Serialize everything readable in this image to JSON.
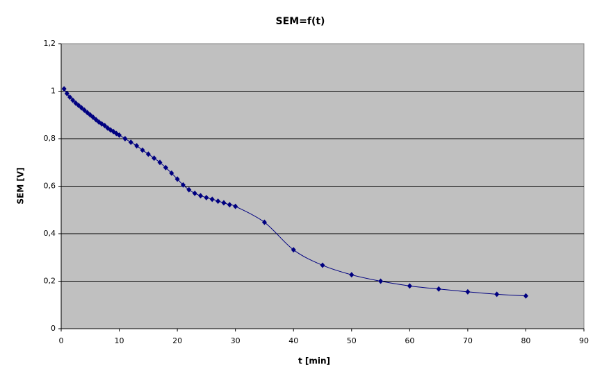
{
  "chart_data": {
    "type": "scatter",
    "title": "SEM=f(t)",
    "x_label": "t [min]",
    "y_label": "SEM [V]",
    "xlim": [
      0,
      90
    ],
    "xticks": [
      0,
      10,
      20,
      30,
      40,
      50,
      60,
      70,
      80,
      90
    ],
    "ylim": [
      0,
      1.2
    ],
    "yticks": [
      0,
      {
        "value": 0.2,
        "label": "0,2"
      },
      {
        "value": 0.4,
        "label": "0,4"
      },
      {
        "value": 0.6,
        "label": "0,6"
      },
      {
        "value": 0.8,
        "label": "0,8"
      },
      1,
      {
        "value": 1.2,
        "label": "1,2"
      }
    ],
    "grid": true,
    "smooth": true,
    "series": [
      {
        "color": "#000080",
        "x": [
          0.5,
          1,
          1.5,
          2,
          2.5,
          3,
          3.5,
          4,
          4.5,
          5,
          5.5,
          6,
          6.5,
          7,
          7.5,
          8,
          8.5,
          9,
          9.5,
          10,
          11,
          12,
          13,
          14,
          15,
          16,
          17,
          18,
          19,
          20,
          21,
          22,
          23,
          24,
          25,
          26,
          27,
          28,
          29,
          30,
          35,
          40,
          45,
          50,
          55,
          60,
          65,
          70,
          75,
          80
        ],
        "values": [
          1.01,
          0.99,
          0.975,
          0.962,
          0.95,
          0.94,
          0.93,
          0.92,
          0.91,
          0.9,
          0.89,
          0.88,
          0.87,
          0.862,
          0.855,
          0.845,
          0.837,
          0.83,
          0.822,
          0.815,
          0.8,
          0.785,
          0.77,
          0.752,
          0.735,
          0.718,
          0.7,
          0.678,
          0.655,
          0.63,
          0.605,
          0.585,
          0.57,
          0.56,
          0.552,
          0.545,
          0.537,
          0.53,
          0.522,
          0.515,
          0.448,
          0.332,
          0.267,
          0.227,
          0.2,
          0.18,
          0.167,
          0.155,
          0.145,
          0.138
        ]
      }
    ]
  }
}
